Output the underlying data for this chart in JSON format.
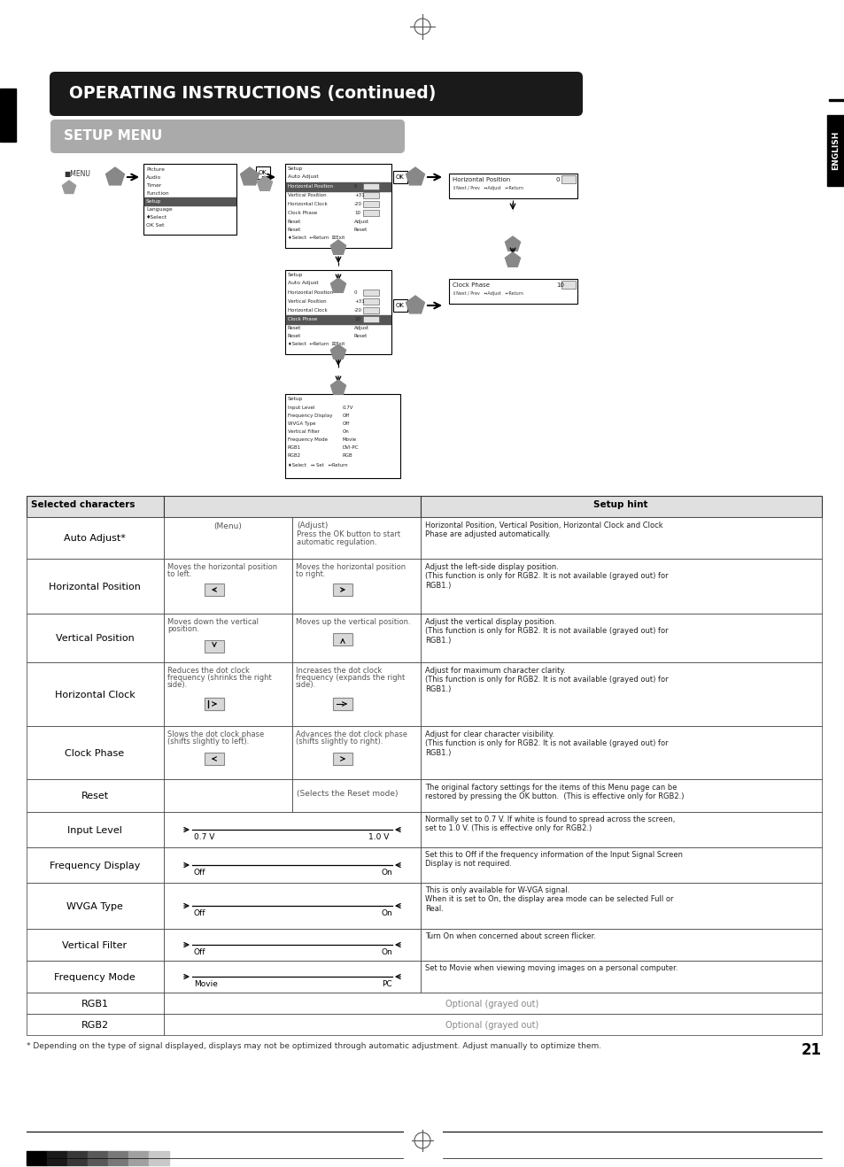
{
  "page_bg": "#ffffff",
  "header_title": "OPERATING INSTRUCTIONS (continued)",
  "header_bg": "#1a1a1a",
  "header_text_color": "#ffffff",
  "subheader_title": "SETUP MENU",
  "subheader_bg": "#aaaaaa",
  "subheader_text_color": "#ffffff",
  "table_header_left": "Selected characters",
  "table_header_right": "Setup hint",
  "rows": [
    {
      "label": "Auto Adjust*",
      "col1": "(Menu)",
      "col2": "(Adjust)\nPress the OK button to start\nautomatic regulation.",
      "hint": "Horizontal Position, Vertical Position, Horizontal Clock and Clock\nPhase are adjusted automatically."
    },
    {
      "label": "Horizontal Position",
      "col1": "Moves the horizontal position\nto left.",
      "col2": "Moves the horizontal position\nto right.",
      "hint": "Adjust the left-side display position.\n(This function is only for RGB2. It is not available (grayed out) for\nRGB1.)"
    },
    {
      "label": "Vertical Position",
      "col1": "Moves down the vertical\nposition.",
      "col2": "Moves up the vertical position.",
      "hint": "Adjust the vertical display position.\n(This function is only for RGB2. It is not available (grayed out) for\nRGB1.)"
    },
    {
      "label": "Horizontal Clock",
      "col1": "Reduces the dot clock\nfrequency (shrinks the right\nside).",
      "col2": "Increases the dot clock\nfrequency (expands the right\nside).",
      "hint": "Adjust for maximum character clarity.\n(This function is only for RGB2. It is not available (grayed out) for\nRGB1.)"
    },
    {
      "label": "Clock Phase",
      "col1": "Slows the dot clock phase\n(shifts slightly to left).",
      "col2": "Advances the dot clock phase\n(shifts slightly to right).",
      "hint": "Adjust for clear character visibility.\n(This function is only for RGB2. It is not available (grayed out) for\nRGB1.)"
    },
    {
      "label": "Reset",
      "col1": "",
      "col2": "(Selects the Reset mode)",
      "hint": "The original factory settings for the items of this Menu page can be\nrestored by pressing the OK button.  (This is effective only for RGB2.)"
    },
    {
      "label": "Input Level",
      "col1": "input_level",
      "col2": "",
      "hint": "Normally set to 0.7 V. If white is found to spread across the screen,\nset to 1.0 V. (This is effective only for RGB2.)"
    },
    {
      "label": "Frequency Display",
      "col1": "freq_display",
      "col2": "",
      "hint": "Set this to Off if the frequency information of the Input Signal Screen\nDisplay is not required."
    },
    {
      "label": "WVGA Type",
      "col1": "wvga_type",
      "col2": "",
      "hint": "This is only available for W-VGA signal.\nWhen it is set to On, the display area mode can be selected Full or\nReal."
    },
    {
      "label": "Vertical Filter",
      "col1": "vertical_filter",
      "col2": "",
      "hint": "Turn On when concerned about screen flicker."
    },
    {
      "label": "Frequency Mode",
      "col1": "freq_mode",
      "col2": "",
      "hint": "Set to Movie when viewing moving images on a personal computer."
    },
    {
      "label": "RGB1",
      "col1": "optional",
      "col2": "",
      "hint": ""
    },
    {
      "label": "RGB2",
      "col1": "optional",
      "col2": "",
      "hint": ""
    }
  ],
  "footnote": "* Depending on the type of signal displayed, displays may not be optimized through automatic adjustment. Adjust manually to optimize them.",
  "page_number": "21"
}
